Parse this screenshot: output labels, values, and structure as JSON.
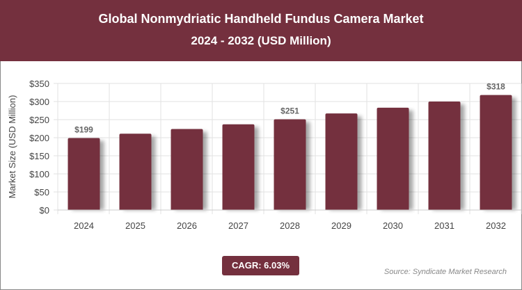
{
  "chart_data": {
    "type": "bar",
    "title": "Global Nonmydriatic Handheld Fundus Camera Market",
    "subtitle": "2024 - 2032 (USD Million)",
    "xlabel": "",
    "ylabel": "Market Size (USD Million)",
    "categories": [
      "2024",
      "2025",
      "2026",
      "2027",
      "2028",
      "2029",
      "2030",
      "2031",
      "2032"
    ],
    "values": [
      199,
      211,
      224,
      237,
      251,
      267,
      283,
      300,
      318
    ],
    "data_labels": {
      "0": "$199",
      "4": "$251",
      "8": "$318"
    },
    "ylim": [
      0,
      350
    ],
    "yticks": [
      "$0",
      "$50",
      "$100",
      "$150",
      "$200",
      "$250",
      "$300",
      "$350"
    ],
    "grid": true,
    "bar_color": "#74303e"
  },
  "cagr": "CAGR: 6.03%",
  "source": "Source: Syndicate Market Research"
}
